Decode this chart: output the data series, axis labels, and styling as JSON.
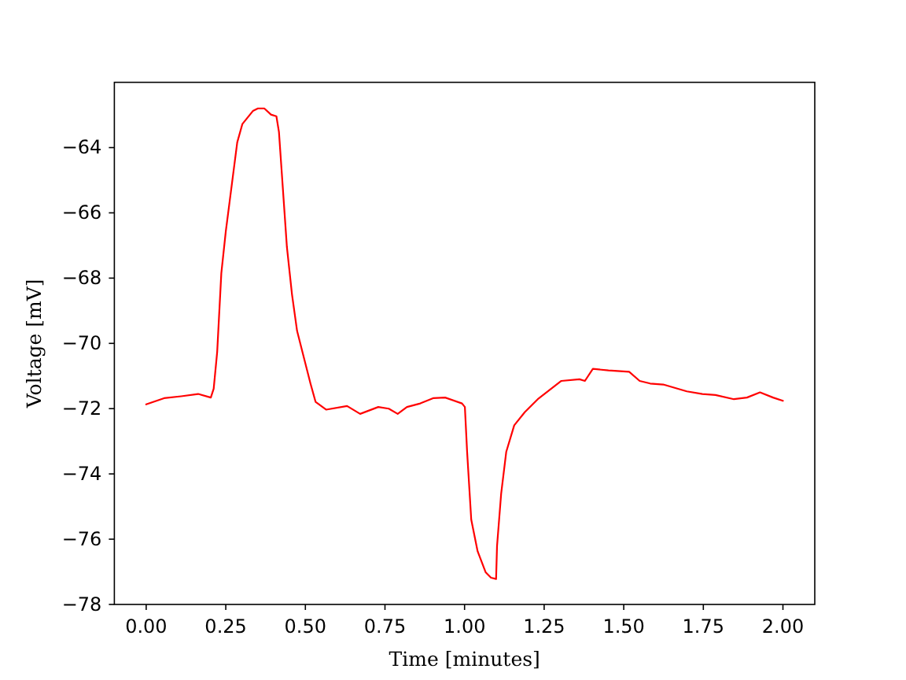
{
  "chart_data": {
    "type": "line",
    "xlabel": "Time [minutes]",
    "ylabel": "Voltage [mV]",
    "xlim": [
      -0.1,
      2.1
    ],
    "ylim": [
      -78,
      -62
    ],
    "xticks": [
      {
        "value": 0,
        "label": "0.00"
      },
      {
        "value": 0.25,
        "label": "0.25"
      },
      {
        "value": 0.5,
        "label": "0.50"
      },
      {
        "value": 0.75,
        "label": "0.75"
      },
      {
        "value": 1,
        "label": "1.00"
      },
      {
        "value": 1.25,
        "label": "1.25"
      },
      {
        "value": 1.5,
        "label": "1.50"
      },
      {
        "value": 1.75,
        "label": "1.75"
      },
      {
        "value": 2,
        "label": "2.00"
      }
    ],
    "yticks": [
      -78,
      -76,
      -74,
      -72,
      -70,
      -68,
      -66,
      -64
    ],
    "grid": false,
    "marker": "none",
    "line_style": "solid",
    "series": [
      {
        "color": "#ff0000",
        "x": [
          0,
          0.056,
          0.11,
          0.163,
          0.203,
          0.212,
          0.223,
          0.236,
          0.25,
          0.269,
          0.286,
          0.302,
          0.335,
          0.351,
          0.371,
          0.392,
          0.409,
          0.417,
          0.425,
          0.442,
          0.458,
          0.474,
          0.499,
          0.516,
          0.532,
          0.565,
          0.631,
          0.672,
          0.729,
          0.762,
          0.79,
          0.819,
          0.861,
          0.901,
          0.939,
          0.992,
          1.001,
          1.008,
          1.021,
          1.041,
          1.066,
          1.083,
          1.099,
          1.102,
          1.115,
          1.131,
          1.156,
          1.189,
          1.23,
          1.304,
          1.361,
          1.378,
          1.403,
          1.452,
          1.517,
          1.55,
          1.583,
          1.624,
          1.698,
          1.747,
          1.788,
          1.846,
          1.887,
          1.928,
          1.969,
          2.0
        ],
        "values": [
          -71.87,
          -71.68,
          -71.62,
          -71.55,
          -71.66,
          -71.39,
          -70.26,
          -67.85,
          -66.57,
          -65.13,
          -63.84,
          -63.28,
          -62.88,
          -62.8,
          -62.8,
          -62.99,
          -63.04,
          -63.52,
          -64.65,
          -67.05,
          -68.5,
          -69.62,
          -70.58,
          -71.23,
          -71.79,
          -72.03,
          -71.92,
          -72.16,
          -71.95,
          -72.0,
          -72.16,
          -71.95,
          -71.84,
          -71.68,
          -71.66,
          -71.84,
          -71.95,
          -73.32,
          -75.4,
          -76.37,
          -77.01,
          -77.18,
          -77.22,
          -76.21,
          -74.6,
          -73.32,
          -72.51,
          -72.11,
          -71.71,
          -71.15,
          -71.1,
          -71.15,
          -70.78,
          -70.83,
          -70.87,
          -71.15,
          -71.23,
          -71.26,
          -71.47,
          -71.55,
          -71.58,
          -71.71,
          -71.66,
          -71.5,
          -71.66,
          -71.76
        ]
      }
    ]
  }
}
